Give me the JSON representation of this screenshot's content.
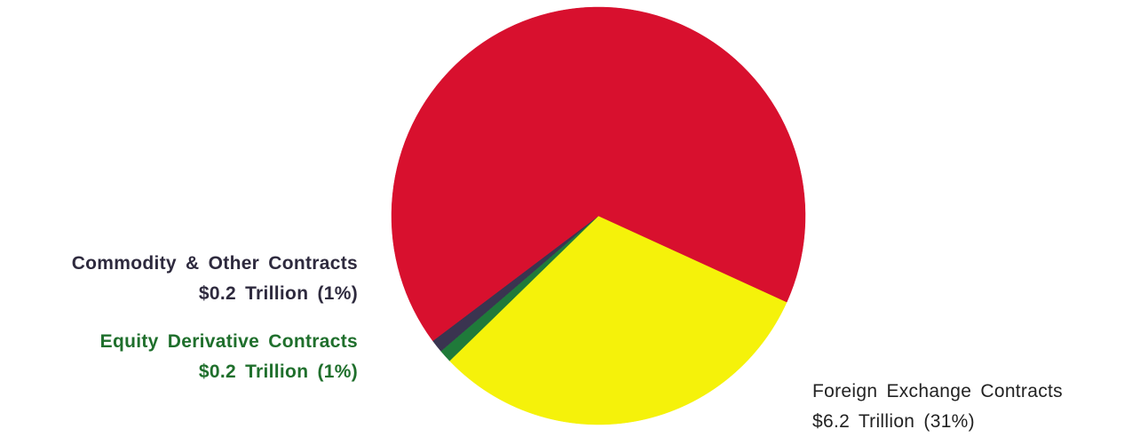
{
  "chart_data": {
    "type": "pie",
    "slices": [
      {
        "name": "Foreign Exchange Contracts",
        "value_text": "$6.2 Trillion (31%)",
        "value": 6.2,
        "percent": 31,
        "color": "#f5f20a"
      },
      {
        "name": "Equity Derivative Contracts",
        "value_text": "$0.2 Trillion (1%)",
        "value": 0.2,
        "percent": 1,
        "color": "#1f7a3a"
      },
      {
        "name": "Commodity & Other Contracts",
        "value_text": "$0.2 Trillion (1%)",
        "value": 0.2,
        "percent": 1,
        "color": "#3a3450"
      },
      {
        "name": "",
        "value_text": "",
        "value": null,
        "percent": 67,
        "color": "#d8102e"
      }
    ],
    "label_colors": {
      "commodity": "#2e2a3e",
      "equity": "#1f6f2c",
      "fx": "#222222"
    }
  },
  "labels": {
    "commodity": {
      "name": "Commodity & Other Contracts",
      "value": "$0.2 Trillion (1%)"
    },
    "equity": {
      "name": "Equity Derivative Contracts",
      "value": "$0.2 Trillion (1%)"
    },
    "fx": {
      "name": "Foreign Exchange Contracts",
      "value": "$6.2 Trillion (31%)"
    }
  }
}
